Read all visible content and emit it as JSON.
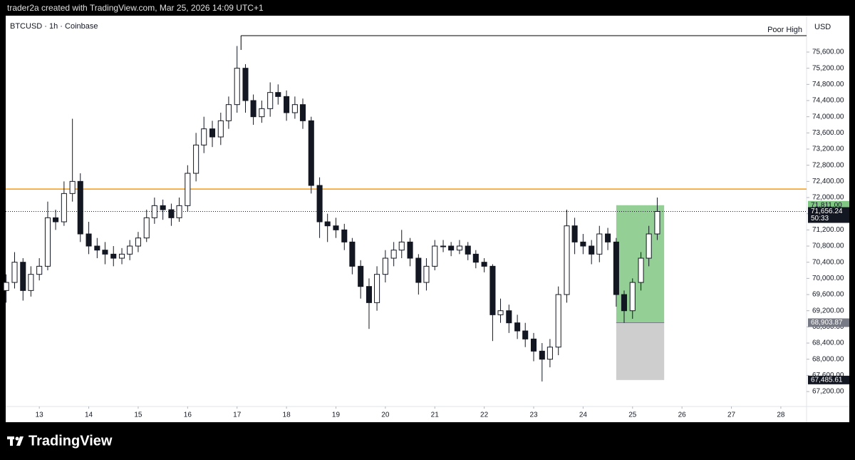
{
  "header": {
    "credit": "trader2a created with TradingView.com, Mar 25, 2026 14:09 UTC+1"
  },
  "footer": {
    "brand": "TradingView"
  },
  "chart_data": {
    "type": "candlestick",
    "title": "BTCUSD · 1h · Coinbase",
    "currency": "USD",
    "color": "#131722",
    "grid": false,
    "xlim": [
      12.32,
      28.52
    ],
    "xticks": [
      13,
      14,
      15,
      16,
      17,
      18,
      19,
      20,
      21,
      22,
      23,
      24,
      25,
      26,
      27,
      28
    ],
    "ylim": [
      66830,
      76500
    ],
    "yticks": [
      {
        "value": 67200,
        "label": "67,200.00"
      },
      {
        "value": 67600,
        "label": "67,600.00"
      },
      {
        "value": 68000,
        "label": "68,000.00"
      },
      {
        "value": 68400,
        "label": "68,400.00"
      },
      {
        "value": 68800,
        "label": "68,800.00"
      },
      {
        "value": 69200,
        "label": "69,200.00"
      },
      {
        "value": 69600,
        "label": "69,600.00"
      },
      {
        "value": 70000,
        "label": "70,000.00"
      },
      {
        "value": 70400,
        "label": "70,400.00"
      },
      {
        "value": 70800,
        "label": "70,800.00"
      },
      {
        "value": 71200,
        "label": "71,200.00"
      },
      {
        "value": 71600,
        "label": "71,600.00"
      },
      {
        "value": 72000,
        "label": "72,000.00"
      },
      {
        "value": 72400,
        "label": "72,400.00"
      },
      {
        "value": 72800,
        "label": "72,800.00"
      },
      {
        "value": 73200,
        "label": "73,200.00"
      },
      {
        "value": 73600,
        "label": "73,600.00"
      },
      {
        "value": 74000,
        "label": "74,000.00"
      },
      {
        "value": 74400,
        "label": "74,400.00"
      },
      {
        "value": 74800,
        "label": "74,800.00"
      },
      {
        "value": 75200,
        "label": "75,200.00"
      },
      {
        "value": 75600,
        "label": "75,600.00"
      }
    ],
    "x": [
      12.33,
      12.5,
      12.67,
      12.83,
      13,
      13.17,
      13.33,
      13.5,
      13.67,
      13.83,
      14,
      14.17,
      14.33,
      14.5,
      14.67,
      14.83,
      15,
      15.17,
      15.33,
      15.5,
      15.67,
      15.83,
      16,
      16.17,
      16.33,
      16.5,
      16.67,
      16.83,
      17,
      17.17,
      17.33,
      17.5,
      17.67,
      17.83,
      18,
      18.17,
      18.33,
      18.5,
      18.67,
      18.83,
      19,
      19.17,
      19.33,
      19.5,
      19.67,
      19.83,
      20,
      20.17,
      20.33,
      20.5,
      20.67,
      20.83,
      21,
      21.17,
      21.33,
      21.5,
      21.67,
      21.83,
      22,
      22.17,
      22.33,
      22.5,
      22.67,
      22.83,
      23,
      23.17,
      23.33,
      23.5,
      23.67,
      23.83,
      24,
      24.17,
      24.33,
      24.5,
      24.67,
      24.83,
      25,
      25.17,
      25.33,
      25.5
    ],
    "open": [
      69700,
      69900,
      70400,
      69700,
      70100,
      70300,
      71500,
      71400,
      72100,
      72400,
      71100,
      70800,
      70700,
      70600,
      70500,
      70600,
      70800,
      71000,
      71500,
      71800,
      71700,
      71500,
      71800,
      72600,
      73300,
      73700,
      73500,
      73900,
      74300,
      75200,
      74400,
      74000,
      74200,
      74600,
      74500,
      74100,
      74300,
      73900,
      72300,
      71400,
      71300,
      71200,
      70900,
      70300,
      69800,
      69400,
      70100,
      70500,
      70700,
      70900,
      70500,
      69900,
      70300,
      70800,
      70800,
      70700,
      70800,
      70600,
      70400,
      70300,
      69100,
      69200,
      68900,
      68700,
      68500,
      68200,
      68000,
      68300,
      69600,
      71300,
      70900,
      70800,
      70600,
      71100,
      70900,
      69600,
      69200,
      69900,
      70500,
      71100
    ],
    "high": [
      70100,
      70650,
      70500,
      70300,
      70500,
      71900,
      71700,
      72400,
      73950,
      72600,
      71400,
      71000,
      70900,
      70800,
      70750,
      70950,
      71150,
      71700,
      72000,
      71950,
      71850,
      72000,
      72800,
      73600,
      74000,
      73900,
      74100,
      74500,
      75750,
      75300,
      74550,
      74400,
      74850,
      74800,
      74650,
      74500,
      74450,
      74000,
      72500,
      71600,
      71500,
      71350,
      71000,
      70450,
      70000,
      70300,
      70700,
      70900,
      71200,
      71000,
      70600,
      70500,
      70950,
      70950,
      70900,
      70950,
      70900,
      70700,
      70500,
      70350,
      69500,
      69350,
      69100,
      68900,
      68650,
      68400,
      68500,
      69800,
      71700,
      71500,
      71100,
      70950,
      71300,
      71250,
      71000,
      69700,
      70000,
      70650,
      71300,
      72000
    ],
    "low": [
      69400,
      69750,
      69450,
      69550,
      69950,
      70200,
      71200,
      71300,
      71900,
      70900,
      70600,
      70500,
      70350,
      70300,
      70350,
      70450,
      70650,
      70900,
      71350,
      71450,
      71300,
      71400,
      71650,
      72400,
      73100,
      73250,
      73300,
      73700,
      74100,
      74100,
      73800,
      73850,
      74000,
      74300,
      73900,
      73950,
      73700,
      72100,
      71000,
      70900,
      71000,
      70700,
      70100,
      69500,
      68750,
      69200,
      69900,
      70300,
      70500,
      70300,
      69600,
      69700,
      70200,
      70650,
      70550,
      70600,
      70450,
      70250,
      70150,
      68450,
      68900,
      68650,
      68500,
      68300,
      67950,
      67450,
      67800,
      68100,
      69400,
      70600,
      70600,
      70350,
      70400,
      70700,
      69300,
      68900,
      69000,
      69700,
      70300,
      70950
    ],
    "close": [
      69900,
      70400,
      69700,
      70100,
      70300,
      71500,
      71400,
      72100,
      72400,
      71100,
      70800,
      70700,
      70600,
      70500,
      70600,
      70800,
      71000,
      71500,
      71800,
      71700,
      71500,
      71800,
      72600,
      73300,
      73700,
      73500,
      73900,
      74300,
      75200,
      74400,
      74000,
      74200,
      74600,
      74500,
      74100,
      74300,
      73900,
      72300,
      71400,
      71300,
      71200,
      70900,
      70300,
      69800,
      69400,
      70100,
      70500,
      70700,
      70900,
      70500,
      69900,
      70300,
      70800,
      70800,
      70700,
      70800,
      70600,
      70400,
      70300,
      69100,
      69200,
      68900,
      68700,
      68500,
      68200,
      68000,
      68300,
      69600,
      71300,
      70900,
      70800,
      70600,
      71100,
      70900,
      69600,
      69200,
      69900,
      70500,
      71100,
      71656.24
    ],
    "levels": [
      {
        "name": "Poor High",
        "value": 76006,
        "start": 17.08,
        "color": "#000000"
      },
      {
        "value": 72210,
        "start": 12.32,
        "color": "#ff9800"
      }
    ],
    "last_price": {
      "value": 71656.24,
      "label": "71,656.24",
      "countdown": "50:33"
    },
    "position": {
      "start": 24.67,
      "end": 25.64,
      "target": {
        "value": 71811,
        "label": "71,811.00"
      },
      "entry": {
        "value": 68903.87,
        "label": "68,903.87"
      },
      "stop": {
        "value": 67485.61,
        "label": "67,485.61"
      },
      "profit_color": "#81c784",
      "loss_color": "#c9c9c9"
    }
  }
}
